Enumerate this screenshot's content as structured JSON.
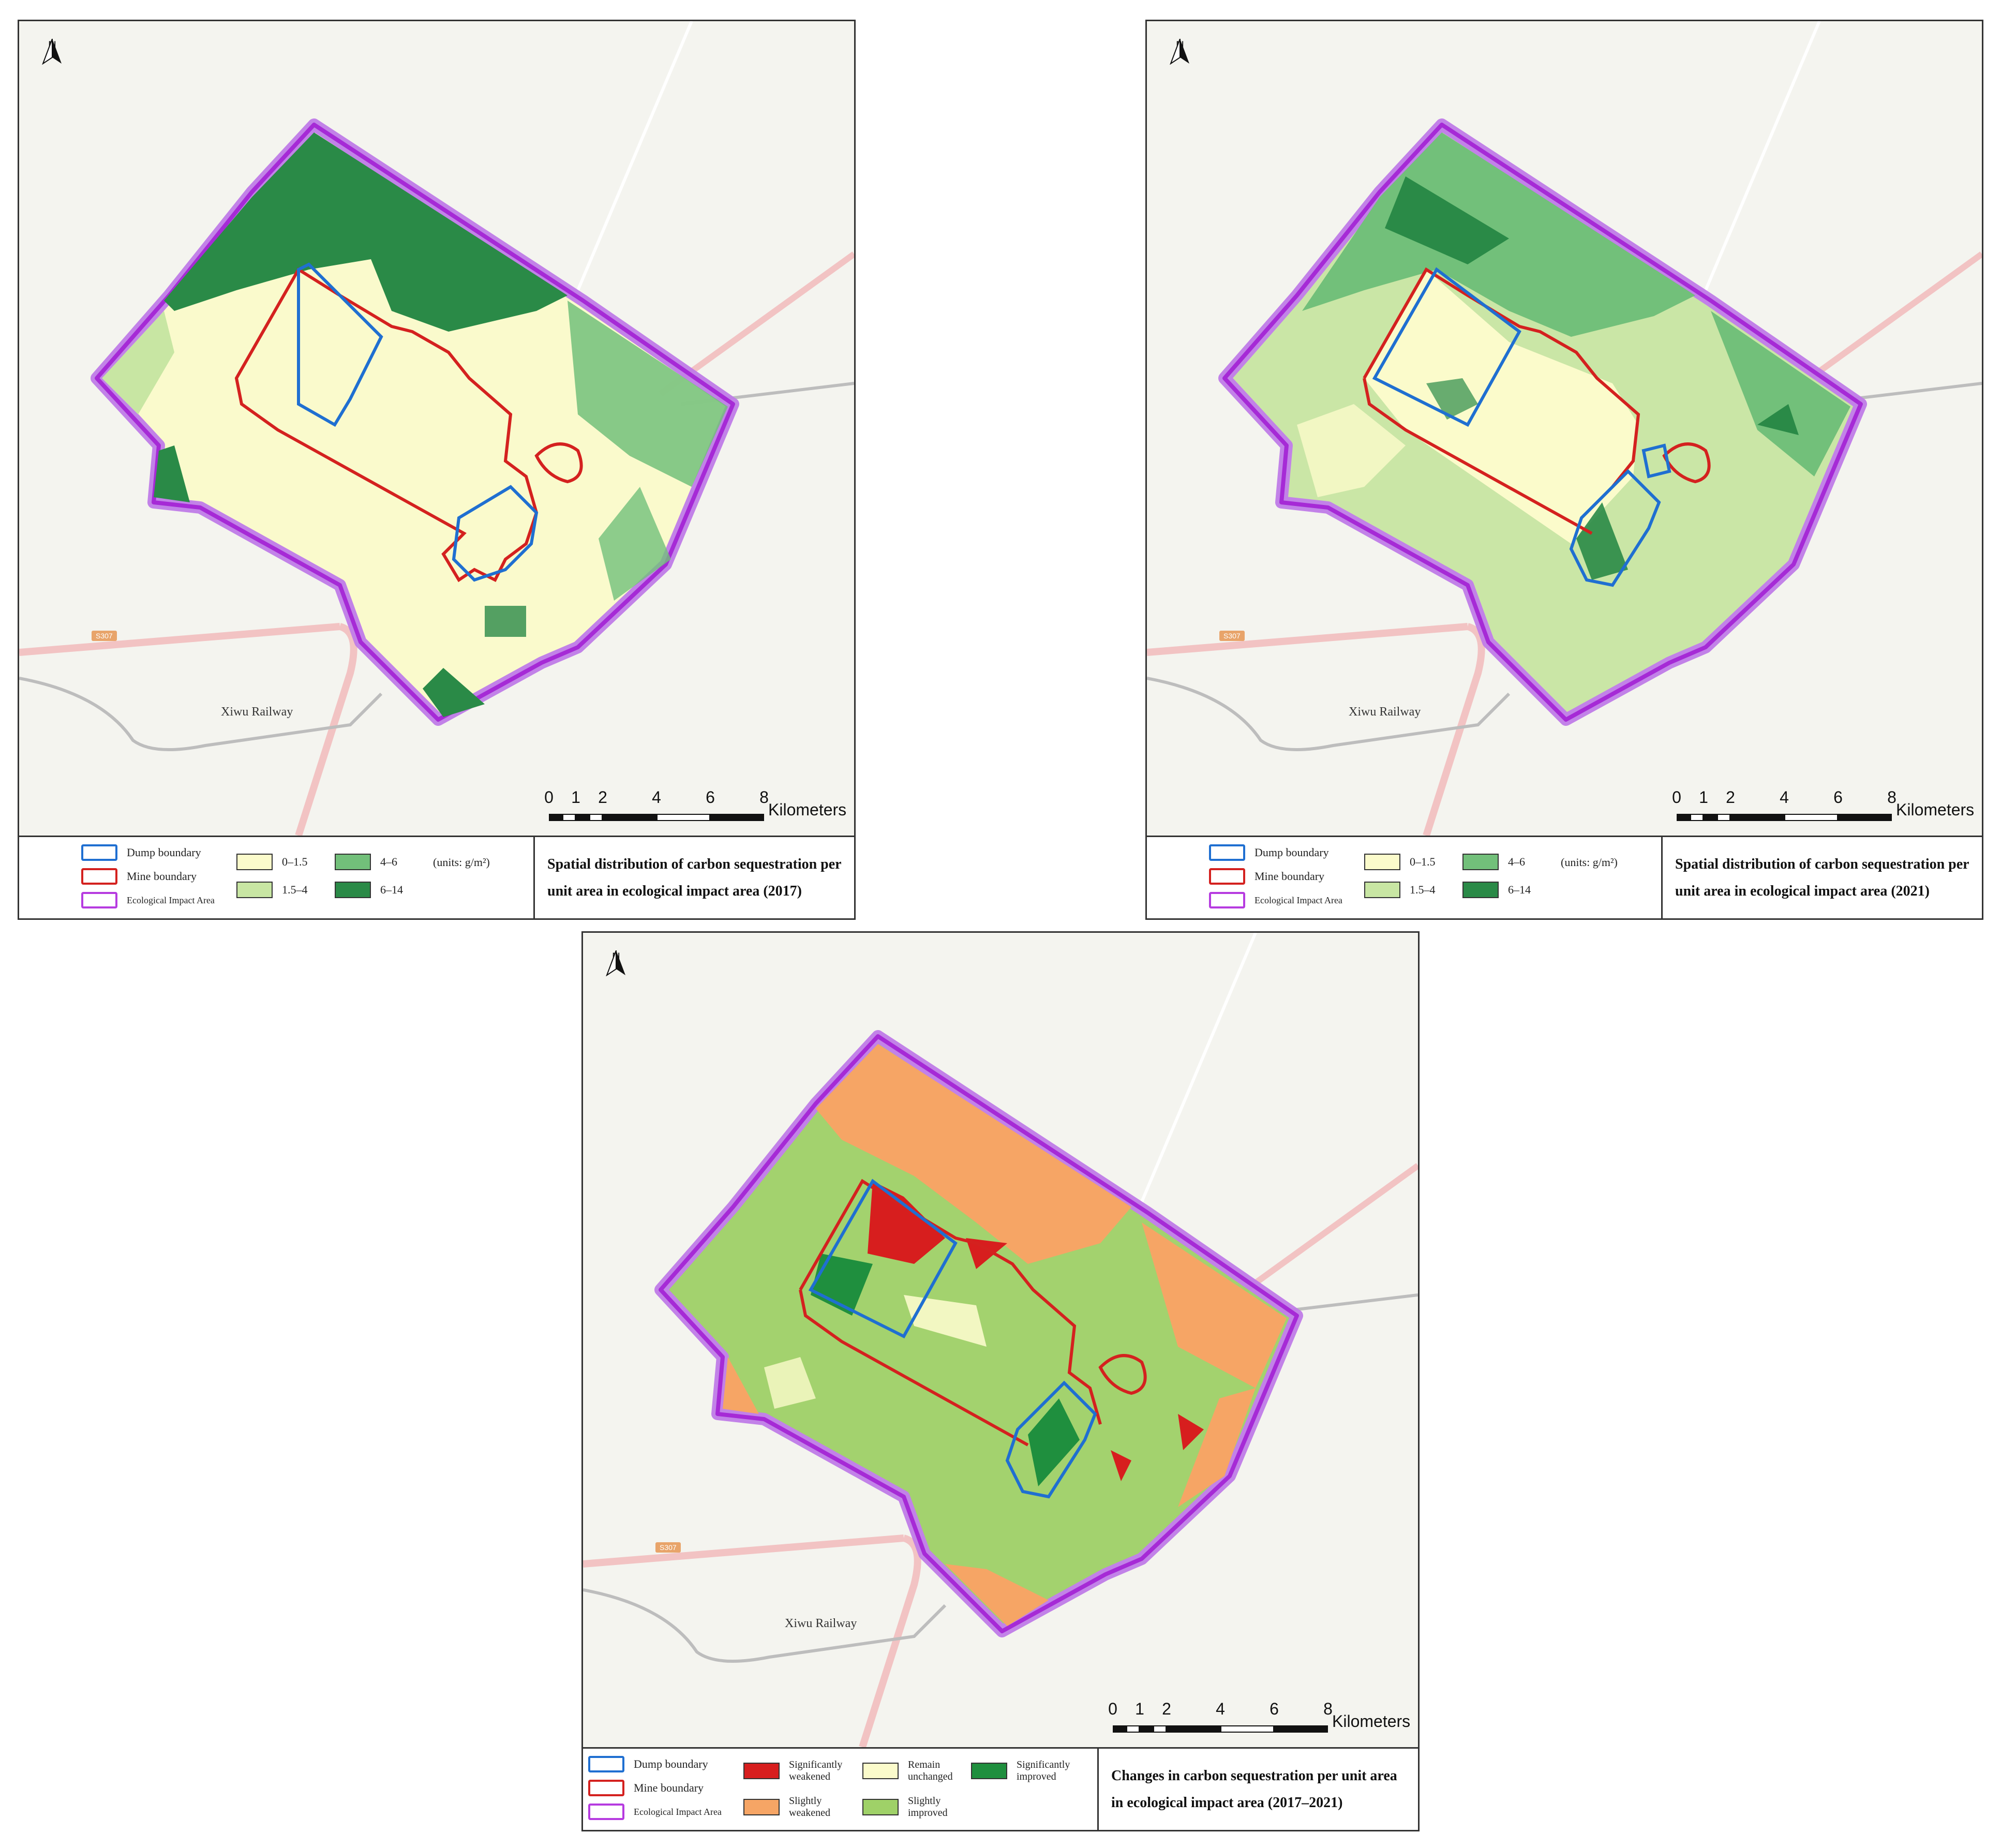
{
  "panels": {
    "p2017": {
      "title": "Spatial distribution of carbon sequestration per unit area in ecological impact area (2017)",
      "legend": {
        "dump": "Dump boundary",
        "mine": "Mine boundary",
        "eco": "Ecological Impact Area",
        "c1": "0–1.5",
        "c2": "1.5–4",
        "c3": "4–6",
        "c4": "6–14",
        "units": "(units: g/m²)"
      }
    },
    "p2021": {
      "title": "Spatial distribution of carbon sequestration per unit area in ecological impact area (2021)",
      "legend": {
        "dump": "Dump boundary",
        "mine": "Mine boundary",
        "eco": "Ecological Impact Area",
        "c1": "0–1.5",
        "c2": "1.5–4",
        "c3": "4–6",
        "c4": "6–14",
        "units": "(units: g/m²)"
      }
    },
    "pchange": {
      "title": "Changes in carbon sequestration per unit area in ecological impact area (2017–2021)",
      "legend": {
        "dump": "Dump boundary",
        "mine": "Mine boundary",
        "eco": "Ecological Impact Area",
        "sig_weak": "Significantly weakened",
        "sli_weak": "Slightly weakened",
        "remain": "Remain unchanged",
        "sli_imp": "Slightly improved",
        "sig_imp": "Significantly improved"
      }
    }
  },
  "map_labels": {
    "north": "N",
    "railway": "Xiwu Railway",
    "route": "S307",
    "scale_ticks": [
      "0",
      "1",
      "2",
      "4",
      "6",
      "8"
    ],
    "scale_unit": "Kilometers"
  },
  "colors": {
    "dump": "#1f6fd1",
    "mine": "#d4211f",
    "eco": "#b63be0",
    "c1": "#fbfbcb",
    "c2": "#c8e6a3",
    "c3": "#72c07a",
    "c4": "#2a8a47",
    "sig_weak": "#d71e1e",
    "sli_weak": "#f6a565",
    "remain": "#fbfbcb",
    "sli_imp": "#9fd168",
    "sig_imp": "#1f8f3e"
  }
}
